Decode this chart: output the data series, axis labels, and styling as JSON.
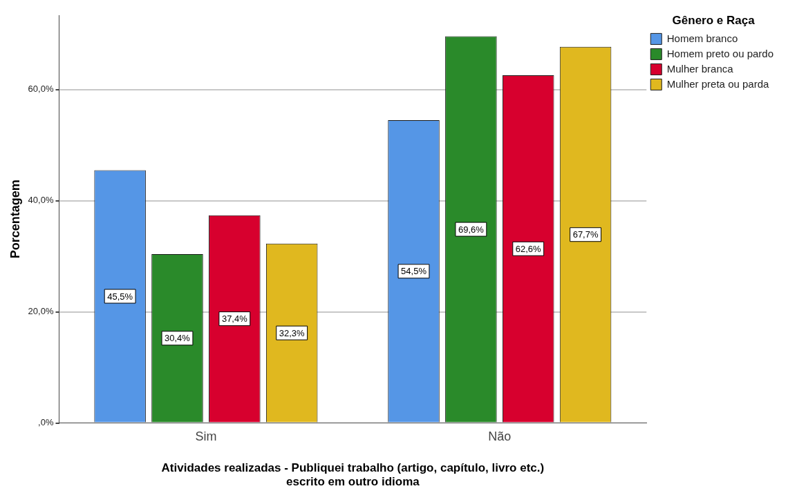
{
  "chart_data": {
    "type": "bar",
    "xlabel": "Atividades realizadas - Publiquei trabalho (artigo, capítulo, livro etc.)\nescrito em outro idioma",
    "ylabel": "Porcentagem",
    "legend_title": "Gênero e Raça",
    "categories": [
      "Sim",
      "Não"
    ],
    "series": [
      {
        "name": "Homem branco",
        "color": "#5596e6",
        "values": [
          45.5,
          54.5
        ],
        "value_labels": [
          "45,5%",
          "54,5%"
        ]
      },
      {
        "name": "Homem preto ou pardo",
        "color": "#2a8a2a",
        "values": [
          30.4,
          69.6
        ],
        "value_labels": [
          "30,4%",
          "69,6%"
        ]
      },
      {
        "name": "Mulher branca",
        "color": "#d7002e",
        "values": [
          37.4,
          62.6
        ],
        "value_labels": [
          "37,4%",
          "62,6%"
        ]
      },
      {
        "name": "Mulher preta ou parda",
        "color": "#e0b81f",
        "values": [
          32.3,
          67.7
        ],
        "value_labels": [
          "32,3%",
          "67,7%"
        ]
      }
    ],
    "ylim": [
      0,
      73.4
    ],
    "yticks": [
      {
        "value": 0,
        "label": ",0%"
      },
      {
        "value": 20,
        "label": "20,0%"
      },
      {
        "value": 40,
        "label": "40,0%"
      },
      {
        "value": 60,
        "label": "60,0%"
      }
    ],
    "grid": "y",
    "legend": "top right"
  }
}
